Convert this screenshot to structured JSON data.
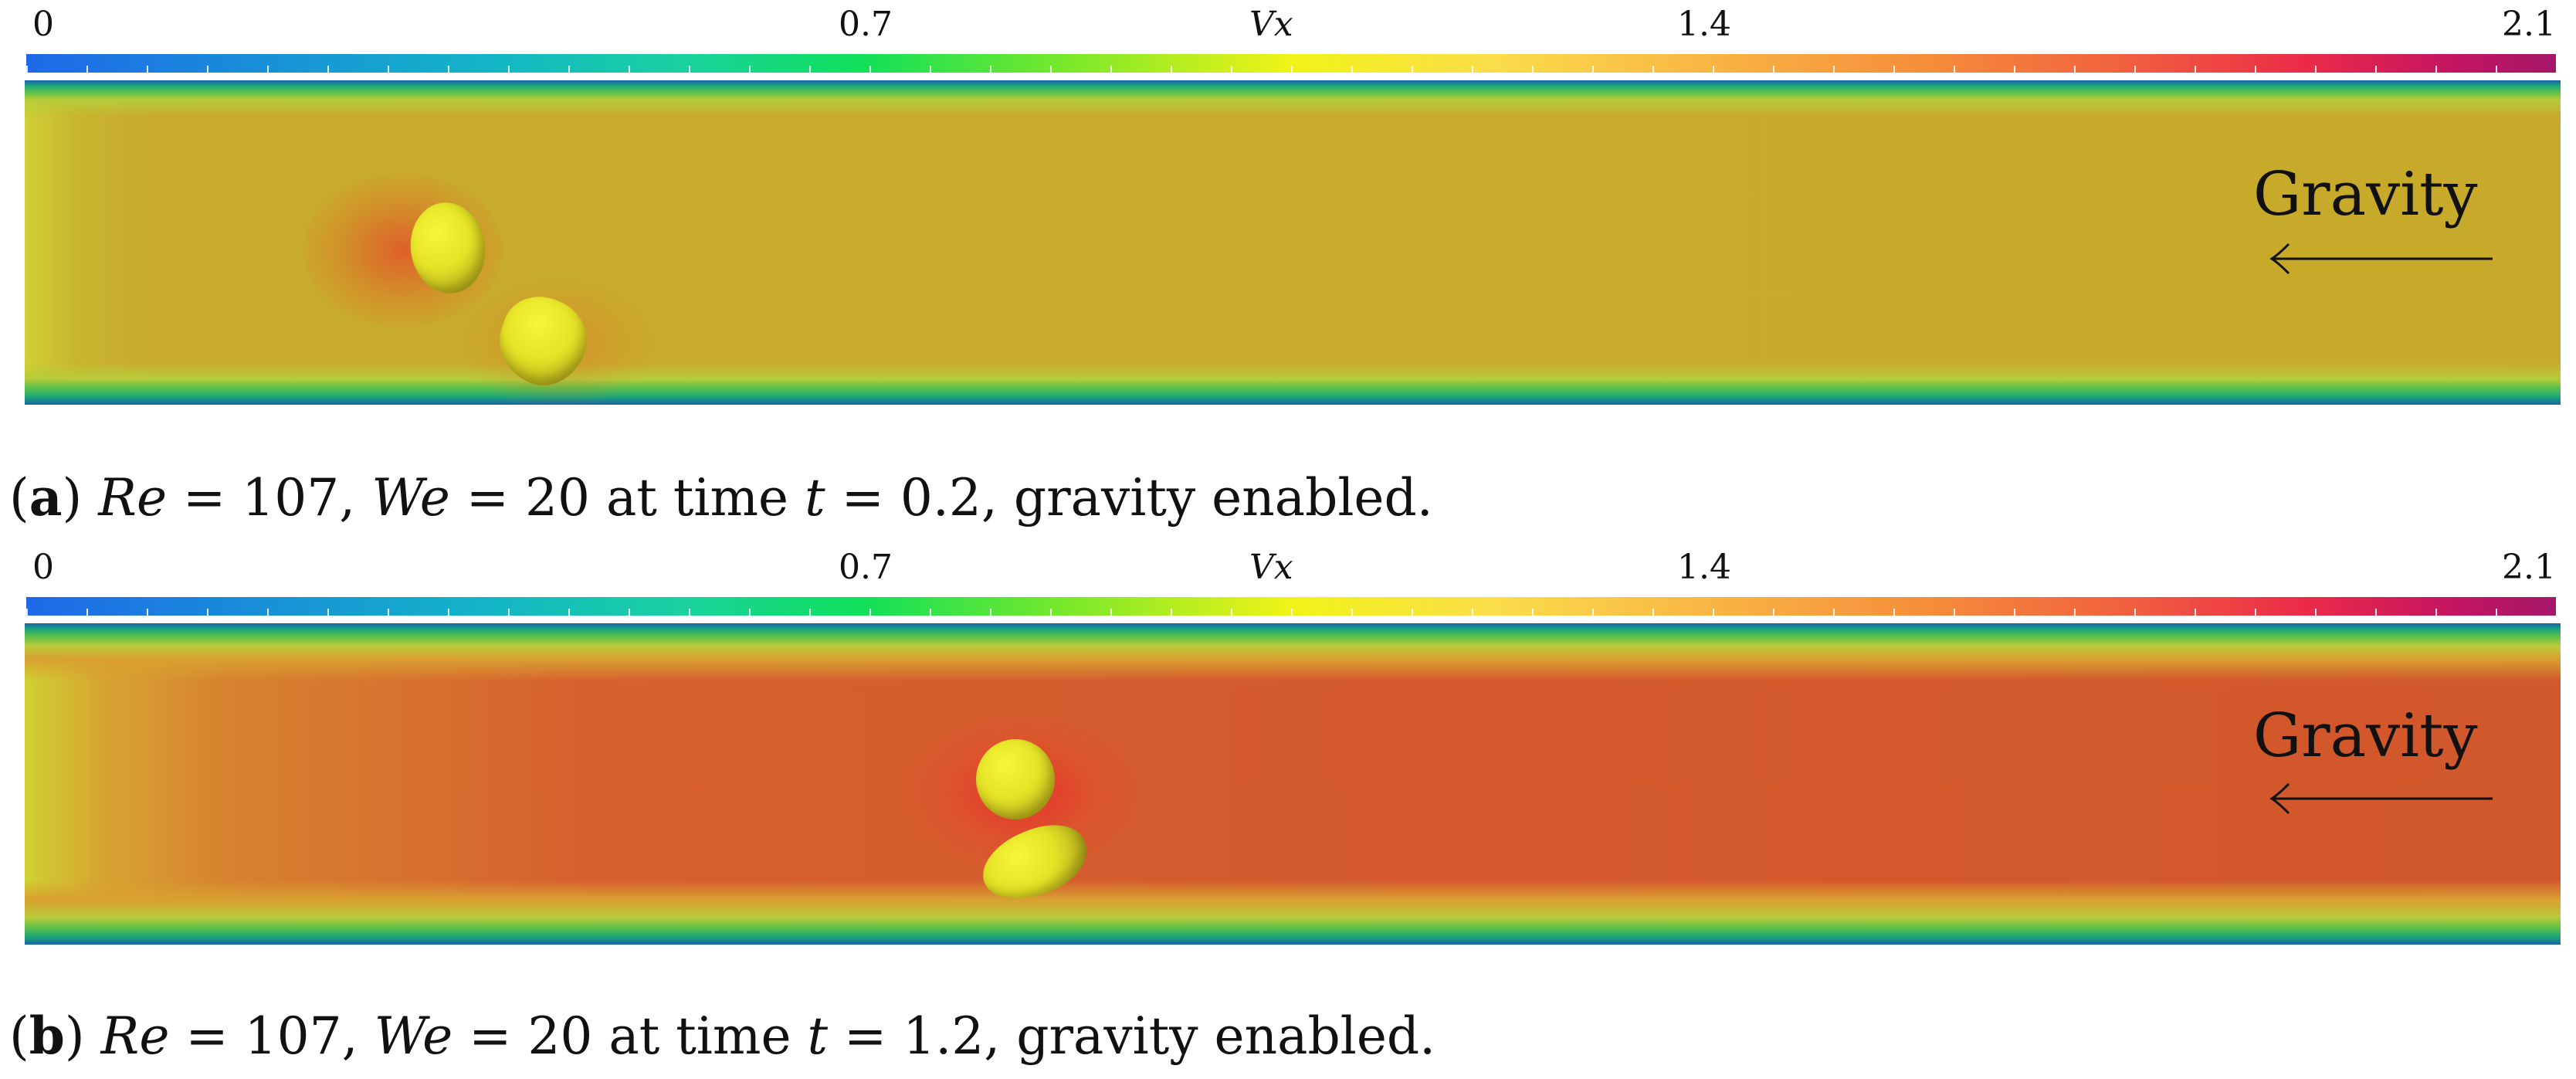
{
  "panels": [
    {
      "colorbar": {
        "title": "Vx",
        "ticks": [
          "0",
          "0.7",
          "1.4",
          "2.1"
        ],
        "range": [
          0,
          2.1
        ],
        "colors": [
          "#1f68e8",
          "#10e05a",
          "#f1f317",
          "#f58e3a",
          "#ec2b48",
          "#a51768"
        ]
      },
      "gravity_label": "Gravity",
      "gravity_direction": "left",
      "caption": {
        "letter": "a",
        "re_label": "Re",
        "re_value": "107",
        "we_label": "We",
        "we_value": "20",
        "time_text": "at time",
        "t_label": "t",
        "t_value": "0.2",
        "suffix": "gravity enabled."
      }
    },
    {
      "colorbar": {
        "title": "Vx",
        "ticks": [
          "0",
          "0.7",
          "1.4",
          "2.1"
        ],
        "range": [
          0,
          2.1
        ],
        "colors": [
          "#1f68e8",
          "#10e05a",
          "#f1f317",
          "#f58e3a",
          "#ec2b48",
          "#a51768"
        ]
      },
      "gravity_label": "Gravity",
      "gravity_direction": "left",
      "caption": {
        "letter": "b",
        "re_label": "Re",
        "re_value": "107",
        "we_label": "We",
        "we_value": "20",
        "time_text": "at time",
        "t_label": "t",
        "t_value": "1.2",
        "suffix": "gravity enabled."
      }
    }
  ]
}
